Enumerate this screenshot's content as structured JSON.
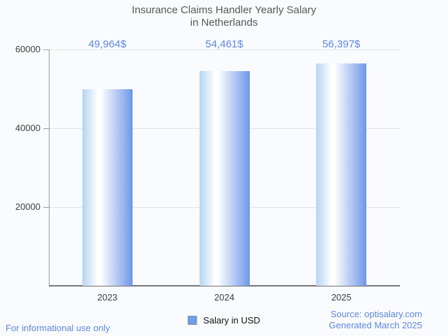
{
  "chart_data": {
    "type": "bar",
    "title": "Insurance Claims Handler Yearly Salary\nin Netherlands",
    "categories": [
      "2023",
      "2024",
      "2025"
    ],
    "series": [
      {
        "name": "Salary in USD",
        "values": [
          49964,
          54461,
          56397
        ]
      }
    ],
    "value_labels": [
      "49,964$",
      "54,461$",
      "56,397$"
    ],
    "xlabel": "",
    "ylabel": "",
    "ylim": [
      0,
      60000
    ],
    "yticks": [
      20000,
      40000,
      60000
    ],
    "ytick_labels": [
      "20000",
      "40000",
      "60000"
    ],
    "grid": true,
    "legend_position": "bottom"
  },
  "colors": {
    "accent_blue": "#5b86e0",
    "bar_gradient_left": "#b5d4f3",
    "bar_gradient_mid": "#ffffff",
    "bar_gradient_right": "#6e97e9",
    "legend_swatch": "#68a0f0",
    "title_text": "#58585a",
    "axis_text": "#3c3c3c",
    "gridline": "#e4e4e6",
    "background": "#fafbfe"
  },
  "footer": {
    "disclaimer": "For informational use only",
    "source": "Source: optisalary.com",
    "generated": "Generated March 2025"
  }
}
